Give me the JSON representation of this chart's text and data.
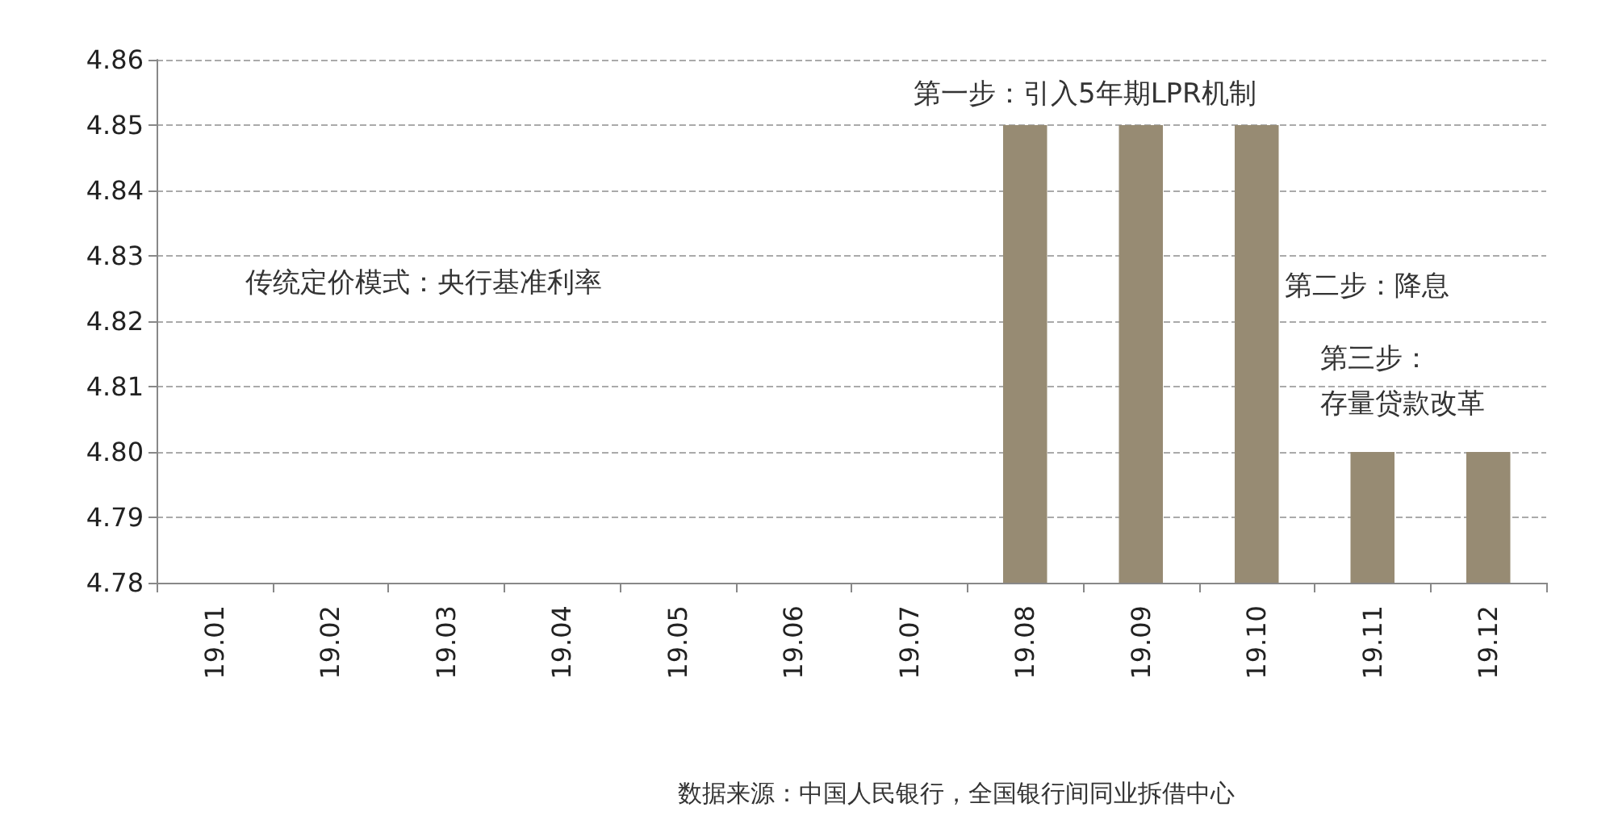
{
  "chart_data": {
    "type": "bar",
    "categories": [
      "19.01",
      "19.02",
      "19.03",
      "19.04",
      "19.05",
      "19.06",
      "19.07",
      "19.08",
      "19.09",
      "19.10",
      "19.11",
      "19.12"
    ],
    "values": [
      null,
      null,
      null,
      null,
      null,
      null,
      null,
      4.85,
      4.85,
      4.85,
      4.8,
      4.8
    ],
    "color": "#978b73",
    "ylim": [
      4.78,
      4.86
    ],
    "yticks": [
      {
        "value": 4.78,
        "label": "4.78"
      },
      {
        "value": 4.79,
        "label": "4.79"
      },
      {
        "value": 4.8,
        "label": "4.80"
      },
      {
        "value": 4.81,
        "label": "4.81"
      },
      {
        "value": 4.82,
        "label": "4.82"
      },
      {
        "value": 4.83,
        "label": "4.83"
      },
      {
        "value": 4.84,
        "label": "4.84"
      },
      {
        "value": 4.85,
        "label": "4.85"
      },
      {
        "value": 4.86,
        "label": "4.86"
      }
    ],
    "grid": "y",
    "line_style": "dashed",
    "annotations": [
      "传统定价模式：央行基准利率",
      "第一步：引入5年期LPR机制",
      "第二步：降息",
      "第三步：",
      "存量贷款改革",
      "数据来源：中国人民银行，全国银行间同业拆借中心"
    ]
  }
}
